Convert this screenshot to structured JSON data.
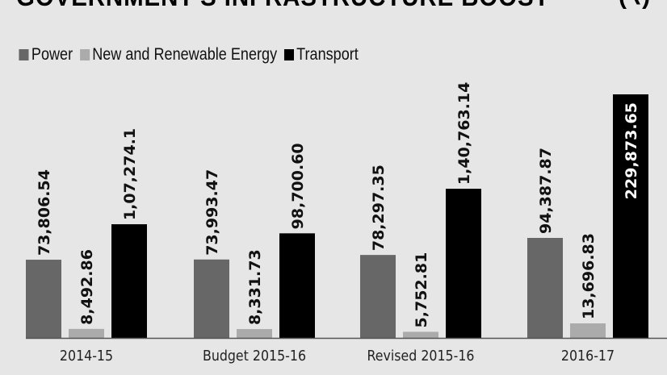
{
  "chart_data": {
    "type": "bar",
    "title": "GOVERNMENT'S INFRASTRUCTURE BOOST",
    "unit": "(₹)",
    "categories": [
      "2014-15",
      "Budget 2015-16",
      "Revised 2015-16",
      "2016-17"
    ],
    "series": [
      {
        "name": "Power",
        "color": "#676767",
        "values": [
          73806.54,
          73993.47,
          78297.35,
          94387.87
        ],
        "labels": [
          "73,806.54",
          "73,993.47",
          "78,297.35",
          "94,387.87"
        ]
      },
      {
        "name": "New and Renewable Energy",
        "color": "#ababab",
        "values": [
          8492.86,
          8331.73,
          5752.81,
          13696.83
        ],
        "labels": [
          "8,492.86",
          "8,331.73",
          "5,752.81",
          "13,696.83"
        ]
      },
      {
        "name": "Transport",
        "color": "#000000",
        "values": [
          107274.1,
          98700.6,
          140763.14,
          229873.65
        ],
        "labels": [
          "1,07,274.1",
          "98,700.60",
          "1,40,763.14",
          "229,873.65"
        ]
      }
    ],
    "ylim": [
      0,
      230000
    ],
    "grid": false,
    "legend_position": "top-left"
  }
}
